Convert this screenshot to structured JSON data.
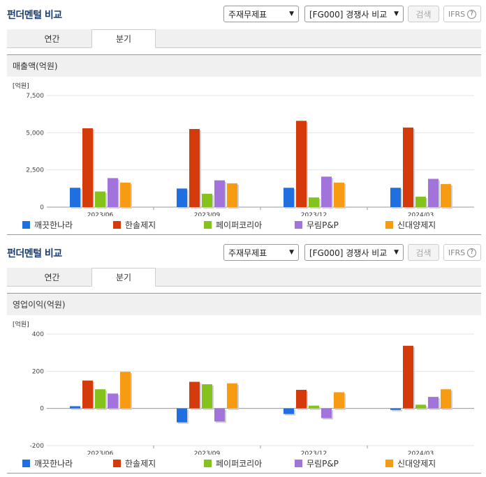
{
  "colors": {
    "company_1": "#1f6fe0",
    "company_2": "#d43a0a",
    "company_3": "#86c21c",
    "company_4": "#a273db",
    "company_5": "#f79b12"
  },
  "panels": [
    {
      "title": "펀더멘털 비교",
      "select_statement": "주재무제표",
      "select_compare": "[FG000] 경쟁사 비교",
      "search_label": "검색",
      "ifrs_label": "IFRS",
      "help_icon": "question-circle-icon",
      "tabs": [
        "연간",
        "분기"
      ],
      "active_tab": "분기",
      "subtitle": "매출액(억원)"
    },
    {
      "title": "펀더멘털 비교",
      "select_statement": "주재무제표",
      "select_compare": "[FG000] 경쟁사 비교",
      "search_label": "검색",
      "ifrs_label": "IFRS",
      "help_icon": "question-circle-icon",
      "tabs": [
        "연간",
        "분기"
      ],
      "active_tab": "분기",
      "subtitle": "영업이익(억원)"
    }
  ],
  "chart_data": [
    {
      "type": "bar",
      "title": "매출액(억원)",
      "unit_label": "[억원]",
      "categories": [
        "2023/06",
        "2023/09",
        "2023/12",
        "2024/03"
      ],
      "ylim": [
        0,
        7500
      ],
      "yticks": [
        0,
        2500,
        5000,
        7500
      ],
      "ytick_labels": [
        "0",
        "2,500",
        "5,000",
        "7,500"
      ],
      "grid": true,
      "legend": "bottom",
      "series": [
        {
          "name": "깨끗한나라",
          "values": [
            1300,
            1250,
            1300,
            1300
          ]
        },
        {
          "name": "한솔제지",
          "values": [
            5300,
            5250,
            5800,
            5350
          ]
        },
        {
          "name": "페이퍼코리아",
          "values": [
            1050,
            900,
            650,
            700
          ]
        },
        {
          "name": "무림P&P",
          "values": [
            1950,
            1800,
            2050,
            1900
          ]
        },
        {
          "name": "신대양제지",
          "values": [
            1650,
            1600,
            1650,
            1550
          ]
        }
      ]
    },
    {
      "type": "bar",
      "title": "영업이익(억원)",
      "unit_label": "[억원]",
      "categories": [
        "2023/06",
        "2023/09",
        "2023/12",
        "2024/03"
      ],
      "ylim": [
        -200,
        400
      ],
      "yticks": [
        -200,
        0,
        200,
        400
      ],
      "ytick_labels": [
        "-200",
        "0",
        "200",
        "400"
      ],
      "grid": true,
      "legend": "bottom",
      "series": [
        {
          "name": "깨끗한나라",
          "values": [
            12,
            -75,
            -30,
            -8
          ]
        },
        {
          "name": "한솔제지",
          "values": [
            150,
            143,
            100,
            337
          ]
        },
        {
          "name": "페이퍼코리아",
          "values": [
            103,
            130,
            15,
            20
          ]
        },
        {
          "name": "무림P&P",
          "values": [
            80,
            -70,
            -52,
            62
          ]
        },
        {
          "name": "신대양제지",
          "values": [
            197,
            135,
            87,
            103
          ]
        }
      ]
    }
  ]
}
